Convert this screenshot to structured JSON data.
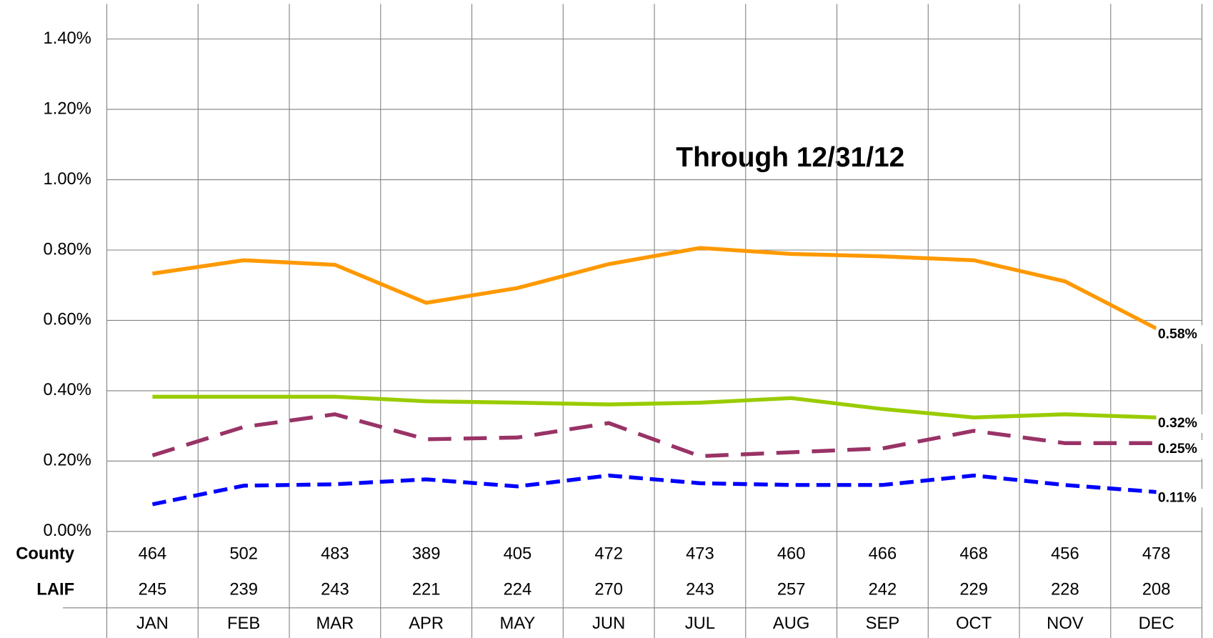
{
  "chart_data": {
    "type": "line",
    "annotation": "Through 12/31/12",
    "categories": [
      "JAN",
      "FEB",
      "MAR",
      "APR",
      "MAY",
      "JUN",
      "JUL",
      "AUG",
      "SEP",
      "OCT",
      "NOV",
      "DEC"
    ],
    "ylim": [
      0,
      1.5
    ],
    "yticks": [
      {
        "value": 0,
        "label": "0.00%"
      },
      {
        "value": 0.2,
        "label": "0.20%"
      },
      {
        "value": 0.4,
        "label": "0.40%"
      },
      {
        "value": 0.6,
        "label": "0.60%"
      },
      {
        "value": 0.8,
        "label": "0.80%"
      },
      {
        "value": 1.0,
        "label": "1.00%"
      },
      {
        "value": 1.2,
        "label": "1.20%"
      },
      {
        "value": 1.4,
        "label": "1.40%"
      }
    ],
    "grid": true,
    "series": [
      {
        "color": "#ff9900",
        "dash": "solid",
        "values": [
          0.733,
          0.771,
          0.758,
          0.65,
          0.692,
          0.76,
          0.806,
          0.789,
          0.782,
          0.771,
          0.711,
          0.577
        ],
        "value_labels": [
          null,
          null,
          null,
          null,
          null,
          null,
          null,
          null,
          null,
          null,
          null,
          "0.58%"
        ]
      },
      {
        "color": "#99cc00",
        "dash": "solid",
        "values": [
          0.383,
          0.383,
          0.383,
          0.37,
          0.366,
          0.361,
          0.366,
          0.379,
          0.348,
          0.324,
          0.333,
          0.324
        ],
        "value_labels": [
          null,
          null,
          null,
          null,
          null,
          null,
          null,
          null,
          null,
          null,
          null,
          "0.32%"
        ]
      },
      {
        "color": "#993366",
        "dash": "long",
        "values": [
          0.216,
          0.297,
          0.333,
          0.262,
          0.267,
          0.308,
          0.214,
          0.225,
          0.236,
          0.286,
          0.251,
          0.251
        ],
        "value_labels": [
          null,
          null,
          null,
          null,
          null,
          null,
          null,
          null,
          null,
          null,
          null,
          "0.25%"
        ]
      },
      {
        "color": "#0000ff",
        "dash": "short",
        "values": [
          0.077,
          0.13,
          0.134,
          0.148,
          0.128,
          0.159,
          0.137,
          0.132,
          0.132,
          0.159,
          0.132,
          0.112
        ],
        "value_labels": [
          null,
          null,
          null,
          null,
          null,
          null,
          null,
          null,
          null,
          null,
          null,
          "0.11%"
        ]
      }
    ],
    "table_rows": [
      {
        "label": "County",
        "values": [
          464,
          502,
          483,
          389,
          405,
          472,
          473,
          460,
          466,
          468,
          456,
          478
        ]
      },
      {
        "label": "LAIF",
        "values": [
          245,
          239,
          243,
          221,
          224,
          270,
          243,
          257,
          242,
          229,
          228,
          208
        ]
      }
    ]
  }
}
